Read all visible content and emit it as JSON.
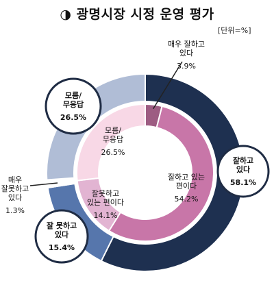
{
  "title": "◑ 광명시장 시정 운영 평가",
  "unit": "[단위=%]",
  "chart_data": {
    "type": "pie",
    "title": "◑ 광명시장 시정 운영 평가",
    "unit": "[단위=%]",
    "outer_ring": [
      {
        "name_lines": [
          "잘하고",
          "있다"
        ],
        "value": 58.1,
        "value_label": "58.1%",
        "color": "#1e3050"
      },
      {
        "name_lines": [
          "잘 못하고",
          "있다"
        ],
        "value": 15.4,
        "value_label": "15.4%",
        "color": "#5676ac"
      },
      {
        "name_lines": [
          "매우",
          "잘못하고",
          "있다"
        ],
        "value": 1.3,
        "value_label": "1.3%",
        "color": "#ffffff"
      },
      {
        "name_lines": [
          "모름/",
          "무응답"
        ],
        "value": 26.5,
        "value_label": "26.5%",
        "color": "#b0bdd6"
      }
    ],
    "inner_ring": [
      {
        "name_lines": [
          "매우 잘하고",
          "있다"
        ],
        "value": 3.9,
        "value_label": "3.9%",
        "color": "#9d5c82"
      },
      {
        "name_lines": [
          "잘하고 있는",
          "편이다"
        ],
        "value": 54.2,
        "value_label": "54.2%",
        "color": "#c876a8"
      },
      {
        "name_lines": [
          "잘못하고",
          "있는 편이다"
        ],
        "value": 14.1,
        "value_label": "14.1%",
        "color": "#e2b4d2"
      },
      {
        "name_lines": [
          "모름/",
          "무응답"
        ],
        "value": 26.5,
        "value_label": "26.5%",
        "color": "#f8d8e6"
      }
    ]
  }
}
